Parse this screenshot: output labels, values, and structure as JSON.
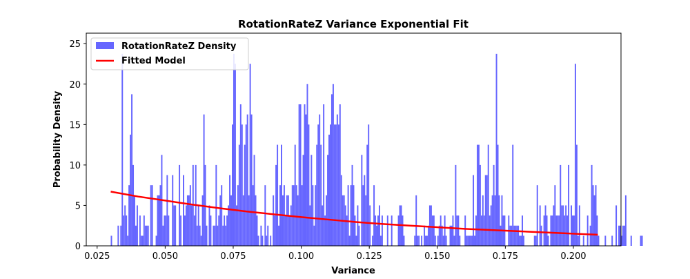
{
  "chart_data": {
    "type": "bar",
    "title": "RotationRateZ Variance Exponential Fit",
    "xlabel": "Variance",
    "ylabel": "Probability Density",
    "xlim": [
      0.021,
      0.2175
    ],
    "ylim": [
      0,
      26.3
    ],
    "xticks": [
      0.025,
      0.05,
      0.075,
      0.1,
      0.125,
      0.15,
      0.175,
      0.2
    ],
    "xtick_labels": [
      "0.025",
      "0.050",
      "0.075",
      "0.100",
      "0.125",
      "0.150",
      "0.175",
      "0.200"
    ],
    "yticks": [
      0,
      5,
      10,
      15,
      20,
      25
    ],
    "ytick_labels": [
      "0",
      "5",
      "10",
      "15",
      "20",
      "25"
    ],
    "grid": false,
    "legend_position": "top-left",
    "colors": {
      "bars": "#6666ff",
      "fit_line": "#ff0000"
    },
    "series": [
      {
        "name": "RotationRateZ Density",
        "kind": "histogram",
        "bin_start": 0.03,
        "bin_width": 0.0005,
        "values": [
          1.25,
          0,
          0,
          0,
          0,
          2.5,
          0,
          2.5,
          23.75,
          3.75,
          5,
          3.75,
          1.25,
          7.5,
          13.75,
          18.75,
          10,
          6.25,
          2.5,
          5,
          0,
          3.75,
          1.25,
          1.25,
          3.75,
          2.5,
          2.5,
          2.5,
          0,
          7.5,
          7.5,
          0,
          0,
          1.25,
          6.25,
          6.25,
          7.5,
          11.25,
          2.5,
          3.75,
          3.75,
          8.75,
          3.75,
          0,
          0,
          8.75,
          5,
          5,
          0,
          0,
          10,
          3.75,
          0,
          8.75,
          3.75,
          5,
          6.25,
          6.25,
          7.5,
          5,
          10,
          3.75,
          10,
          2.5,
          5,
          2.5,
          1.25,
          6.25,
          16.25,
          10,
          2.5,
          0,
          5,
          3.75,
          0,
          2.5,
          2.5,
          10,
          2.5,
          3.75,
          6.25,
          7.5,
          2.5,
          3.75,
          2.5,
          3.75,
          5,
          8.75,
          6.25,
          15,
          23.75,
          22.5,
          5,
          7.5,
          12.5,
          17.5,
          15,
          6.25,
          12.5,
          15,
          16.25,
          6.25,
          22.5,
          16.25,
          7.5,
          11.25,
          6.25,
          3.75,
          1.25,
          0,
          2.5,
          1.25,
          0,
          7.5,
          1.25,
          2.5,
          0,
          1.25,
          0,
          6.25,
          3.75,
          10,
          12.5,
          2.5,
          7.5,
          12.5,
          6.25,
          7.5,
          3.75,
          6.25,
          6.25,
          3.75,
          5,
          7.5,
          7.5,
          12.5,
          7.5,
          6.25,
          17.5,
          17.5,
          7.5,
          11.25,
          17.5,
          16.25,
          20,
          15,
          5,
          11.25,
          7.5,
          2.5,
          7.5,
          12.5,
          15,
          16.25,
          12.5,
          5,
          17.5,
          3.75,
          6.25,
          11.25,
          13.75,
          15,
          18.75,
          20,
          15,
          15,
          16.25,
          15,
          17.5,
          8.75,
          6.25,
          6.25,
          5,
          3.75,
          7.5,
          1.25,
          7.5,
          10,
          7.5,
          3.75,
          1.25,
          5,
          2.5,
          0,
          11.25,
          7.5,
          8.75,
          6.25,
          12.5,
          15,
          5,
          0,
          1.25,
          7.5,
          3.75,
          2.5,
          3.75,
          5,
          1.25,
          3.75,
          0,
          0,
          0,
          3.75,
          0,
          0,
          3.75,
          0,
          0,
          0,
          0,
          3.75,
          5,
          5,
          3.75,
          1.25,
          0,
          0,
          0,
          0,
          0,
          0,
          0,
          1.25,
          6.25,
          1.25,
          1.25,
          0,
          1.25,
          0,
          2.5,
          1.25,
          1.25,
          2.5,
          5,
          5,
          3.75,
          3.75,
          1.25,
          0,
          1.25,
          2.5,
          3.75,
          2.5,
          1.25,
          3.75,
          1.25,
          0,
          0,
          2.5,
          2.5,
          3.75,
          1.25,
          10,
          3.75,
          3.75,
          1.25,
          0,
          0,
          0,
          3.75,
          1.25,
          1.25,
          1.25,
          1.25,
          1.25,
          8.75,
          1.25,
          3.75,
          12.5,
          12.5,
          10,
          3.75,
          6.25,
          3.75,
          8.75,
          8.75,
          12.5,
          3.75,
          5,
          6.25,
          10,
          6.25,
          23.75,
          12.5,
          6.25,
          2.5,
          6.25,
          3.75,
          3.75,
          0,
          0,
          3.75,
          2.5,
          2.5,
          12.5,
          2.5,
          2.5,
          2.5,
          2.5,
          1.25,
          1.25,
          3.75,
          1.25,
          0,
          0,
          0,
          0,
          0,
          0,
          0,
          1.25,
          1.25,
          7.5,
          0,
          5,
          2.5,
          0,
          3.75,
          5,
          3.75,
          1.25,
          0,
          3.75,
          3.75,
          5,
          7.5,
          3.75,
          3.75,
          3.75,
          10,
          5,
          5,
          3.75,
          5,
          3.75,
          10,
          0,
          5,
          3.75,
          3.75,
          22.5,
          12.5,
          1.25,
          5,
          0,
          0,
          1.25,
          0,
          0,
          3.75,
          0,
          2.5,
          10,
          7.5,
          6.25,
          7.5,
          3.75,
          1.25,
          0,
          0,
          0,
          0,
          1.25,
          0,
          0,
          0,
          0,
          1.25,
          0,
          0,
          5,
          0,
          2.5,
          2.5,
          1.25,
          2.5,
          2.5,
          6.25,
          0,
          0,
          0,
          1.25,
          0,
          0,
          0,
          0,
          0,
          0,
          1.25,
          1.25
        ]
      },
      {
        "name": "Fitted Model",
        "kind": "line",
        "x": [
          0.03,
          0.04,
          0.05,
          0.06,
          0.07,
          0.08,
          0.09,
          0.1,
          0.11,
          0.12,
          0.13,
          0.14,
          0.15,
          0.16,
          0.17,
          0.18,
          0.19,
          0.2,
          0.209
        ],
        "values": [
          6.7,
          6.1,
          5.6,
          5.1,
          4.65,
          4.25,
          3.9,
          3.55,
          3.25,
          2.95,
          2.7,
          2.5,
          2.3,
          2.1,
          1.95,
          1.8,
          1.65,
          1.5,
          1.38
        ]
      }
    ]
  }
}
